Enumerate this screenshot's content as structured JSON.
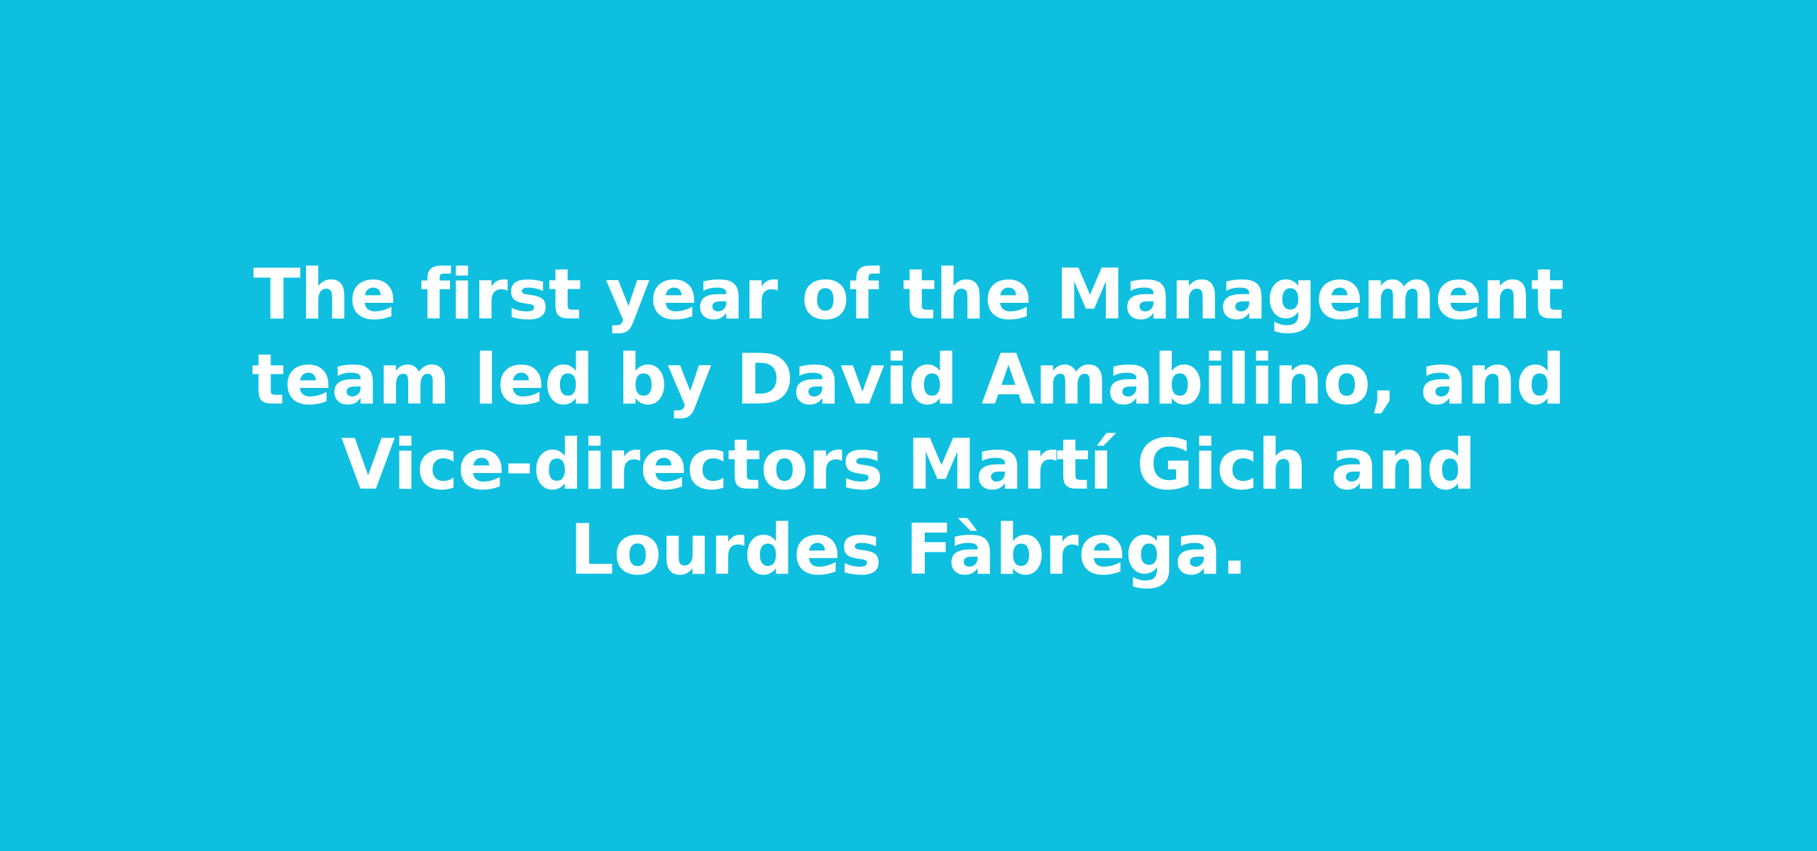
{
  "colors": {
    "background": "#0ebfe0",
    "text": "#ffffff"
  },
  "headline": {
    "lines": [
      "The first year of the Management",
      "team led by David Amabilino, and",
      "Vice-directors Martí Gich and",
      "Lourdes Fàbrega."
    ]
  }
}
